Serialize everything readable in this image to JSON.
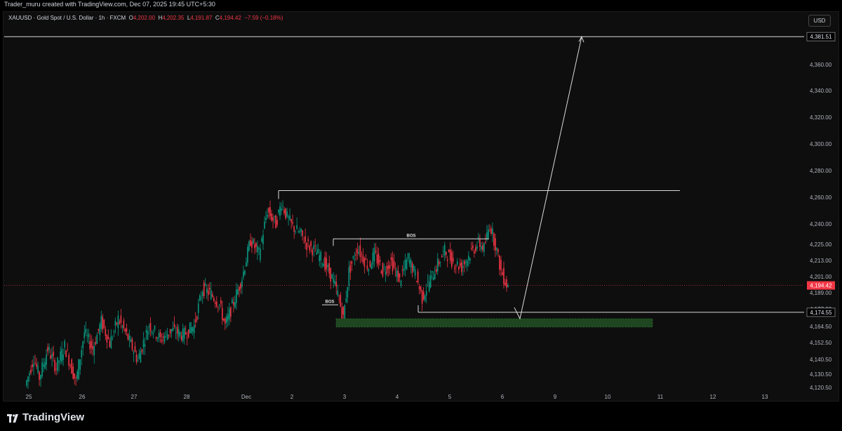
{
  "header": {
    "caption": "Trader_muru created with TradingView.com, Dec 07, 2025 19:45 UTC+5:30"
  },
  "legend": {
    "symbol": "XAUUSD · Gold Spot / U.S. Dollar · 1h · FXCM",
    "o_label": "O",
    "o_value": "4,202.00",
    "h_label": "H",
    "h_value": "4,202.35",
    "l_label": "L",
    "l_value": "4,191.87",
    "c_label": "C",
    "c_value": "4,194.42",
    "change": "−7.59 (−0.18%)"
  },
  "currency_button": "USD",
  "footer": {
    "brand": "TradingView"
  },
  "colors": {
    "background": "#0e0e0e",
    "up_candle": "#089981",
    "down_candle": "#f23645",
    "zone": "#1e4620",
    "zone_border": "#2e7d32",
    "drawing": "#d9d9d9"
  },
  "chart_data": {
    "type": "candlestick",
    "y_ticks": [
      "4,360.00",
      "4,340.00",
      "4,320.00",
      "4,300.00",
      "4,280.00",
      "4,260.00",
      "4,240.00",
      "4,225.00",
      "4,213.00",
      "4,201.00",
      "4,189.00",
      "4,177.00",
      "4,164.50",
      "4,152.50",
      "4,140.50",
      "4,130.50",
      "4,120.50"
    ],
    "x_ticks": [
      "25",
      "26",
      "27",
      "28",
      "Dec",
      "2",
      "3",
      "4",
      "5",
      "6",
      "9",
      "10",
      "11",
      "12",
      "13"
    ],
    "price_labels": {
      "target": "4,381.51",
      "current": "4,194.42",
      "support": "4,174.55"
    },
    "annotations": [
      {
        "label": "BOS",
        "type": "break-of-structure",
        "level": 4229
      },
      {
        "label": "BOS",
        "type": "break-of-structure",
        "level": 4180
      }
    ],
    "levels": {
      "upper_resistance": 4265,
      "target": 4381.51,
      "current": 4194.42,
      "support": 4174.55,
      "demand_zone": [
        4164,
        4170
      ]
    },
    "path_arrow": [
      {
        "x": "6",
        "y": 4178
      },
      {
        "x": "6",
        "y": 4170
      },
      {
        "x": "9",
        "y": 4381.51
      }
    ]
  }
}
